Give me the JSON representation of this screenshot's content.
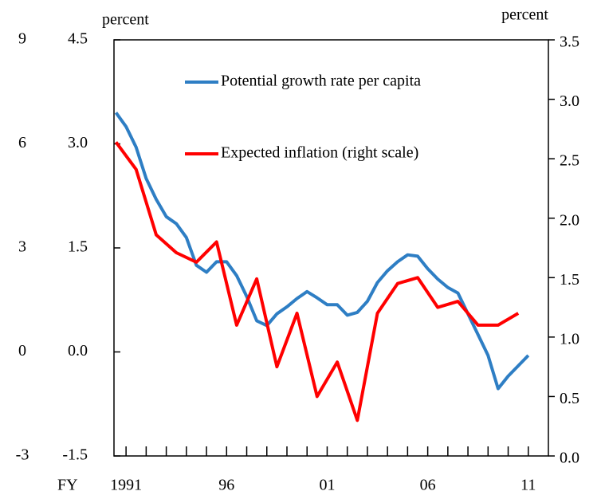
{
  "chart_data": {
    "type": "line",
    "x_label": "FY",
    "y_label": "percent",
    "y2_label": "percent",
    "legend": "upper right",
    "xlim": [
      1990.4,
      2012
    ],
    "xticks": [
      {
        "value": 1991,
        "label": "1991"
      },
      {
        "value": 1996,
        "label": "96"
      },
      {
        "value": 2001,
        "label": "01"
      },
      {
        "value": 2006,
        "label": "06"
      },
      {
        "value": 2011,
        "label": "11"
      }
    ],
    "xminorticks": [
      1991,
      1992,
      1993,
      1994,
      1995,
      1996,
      1997,
      1998,
      1999,
      2000,
      2001,
      2002,
      2003,
      2004,
      2005,
      2006,
      2007,
      2008,
      2009,
      2010,
      2011
    ],
    "ylim": [
      -1.5,
      4.5
    ],
    "yticks": [
      {
        "value": 4.5,
        "label": "4.5"
      },
      {
        "value": 3,
        "label": "3.0"
      },
      {
        "value": 1.5,
        "label": "1.5"
      },
      {
        "value": 0,
        "label": "0.0"
      },
      {
        "value": -1.5,
        "label": "-1.5"
      }
    ],
    "y2lim": [
      0,
      3.5
    ],
    "y2ticks": [
      3.5,
      {
        "value": 3,
        "label": "3.0"
      },
      2.5,
      {
        "value": 2,
        "label": "2.0"
      },
      1.5,
      {
        "value": 1,
        "label": "1.0"
      },
      0.5,
      {
        "value": 0,
        "label": "0.0"
      }
    ],
    "y3lim": [
      -3,
      9
    ],
    "y3ticks": [
      9,
      6,
      3,
      0,
      -3
    ],
    "series": [
      {
        "name": "Potential growth rate per capita",
        "color": "#2e7ec4",
        "x": [
          1990.5,
          1991,
          1991.5,
          1992,
          1992.5,
          1993,
          1993.5,
          1994,
          1994.5,
          1995,
          1995.5,
          1996,
          1996.5,
          1997,
          1997.5,
          1998,
          1998.5,
          1999,
          1999.5,
          2000,
          2000.5,
          2001,
          2001.5,
          2002,
          2002.5,
          2003,
          2003.5,
          2004,
          2004.5,
          2005,
          2005.5,
          2006,
          2006.5,
          2007,
          2007.5,
          2008,
          2008.5,
          2009,
          2009.5,
          2010,
          2010.5,
          2011
        ],
        "values": [
          3.45,
          3.25,
          2.95,
          2.5,
          2.2,
          1.95,
          1.85,
          1.65,
          1.25,
          1.15,
          1.3,
          1.3,
          1.1,
          0.8,
          0.45,
          0.38,
          0.55,
          0.65,
          0.77,
          0.87,
          0.78,
          0.68,
          0.68,
          0.53,
          0.57,
          0.73,
          1.0,
          1.17,
          1.3,
          1.4,
          1.38,
          1.2,
          1.05,
          0.93,
          0.85,
          0.55,
          0.25,
          -0.05,
          -0.53,
          -0.35,
          -0.2,
          -0.05
        ]
      },
      {
        "name": "Expected inflation (right scale)",
        "color": "#ff0000",
        "axis": "y2",
        "x": [
          1990.5,
          1991.5,
          1992.5,
          1993.5,
          1994.5,
          1995.5,
          1996.5,
          1997.5,
          1998.5,
          1999.5,
          2000.5,
          2001.5,
          2002.5,
          2003.5,
          2004.5,
          2005.5,
          2006.5,
          2007.5,
          2008.5,
          2009.5,
          2010.5
        ],
        "values": [
          2.64,
          2.41,
          1.86,
          1.71,
          1.63,
          1.8,
          1.1,
          1.49,
          0.75,
          1.2,
          0.5,
          0.79,
          0.3,
          1.2,
          1.45,
          1.5,
          1.25,
          1.3,
          1.1,
          1.1,
          1.2
        ]
      }
    ]
  }
}
